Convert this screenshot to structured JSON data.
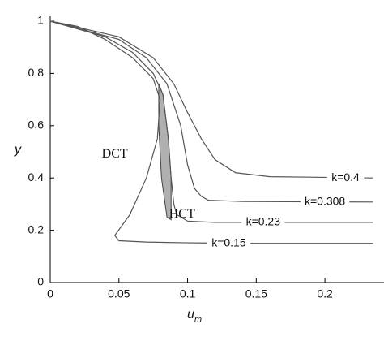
{
  "chart_data": {
    "type": "line",
    "xlabel": "u",
    "xlabel_sub": "m",
    "ylabel": "y",
    "xlim": [
      0,
      0.243
    ],
    "ylim": [
      0,
      1
    ],
    "xticks": [
      0,
      0.05,
      0.1,
      0.15,
      0.2
    ],
    "yticks": [
      0,
      0.2,
      0.4,
      0.6,
      0.8,
      1
    ],
    "series": [
      {
        "name": "k=0.4",
        "color": "#555555",
        "x": [
          0,
          0.05,
          0.075,
          0.09,
          0.1,
          0.11,
          0.12,
          0.135,
          0.16,
          0.235
        ],
        "values": [
          1,
          0.94,
          0.86,
          0.76,
          0.65,
          0.55,
          0.47,
          0.42,
          0.405,
          0.4
        ]
      },
      {
        "name": "k=0.308",
        "color": "#555555",
        "x": [
          0,
          0.05,
          0.07,
          0.085,
          0.095,
          0.1,
          0.105,
          0.11,
          0.115,
          0.14,
          0.235
        ],
        "values": [
          1,
          0.93,
          0.86,
          0.76,
          0.6,
          0.45,
          0.36,
          0.33,
          0.315,
          0.31,
          0.308
        ]
      },
      {
        "name": "k=0.23",
        "color": "#555555",
        "x": [
          0,
          0.04,
          0.06,
          0.075,
          0.082,
          0.086,
          0.088,
          0.09,
          0.092,
          0.1,
          0.12,
          0.235
        ],
        "values": [
          1,
          0.94,
          0.88,
          0.8,
          0.72,
          0.55,
          0.4,
          0.3,
          0.26,
          0.235,
          0.23,
          0.23
        ]
      },
      {
        "name": "k=0.15",
        "color": "#555555",
        "x": [
          0,
          0.02,
          0.04,
          0.06,
          0.075,
          0.08,
          0.078,
          0.07,
          0.058,
          0.047,
          0.05,
          0.07,
          0.1,
          0.15,
          0.235
        ],
        "values": [
          1,
          0.98,
          0.93,
          0.86,
          0.78,
          0.7,
          0.55,
          0.4,
          0.26,
          0.18,
          0.16,
          0.155,
          0.152,
          0.15,
          0.15
        ]
      }
    ],
    "shaded_region": {
      "color": "#b0b0b0",
      "x": [
        0.079,
        0.082,
        0.086,
        0.088,
        0.088,
        0.085,
        0.081,
        0.079
      ],
      "values": [
        0.76,
        0.72,
        0.55,
        0.4,
        0.24,
        0.25,
        0.4,
        0.6
      ]
    },
    "annotations": [
      "DCT",
      "HCT"
    ]
  }
}
